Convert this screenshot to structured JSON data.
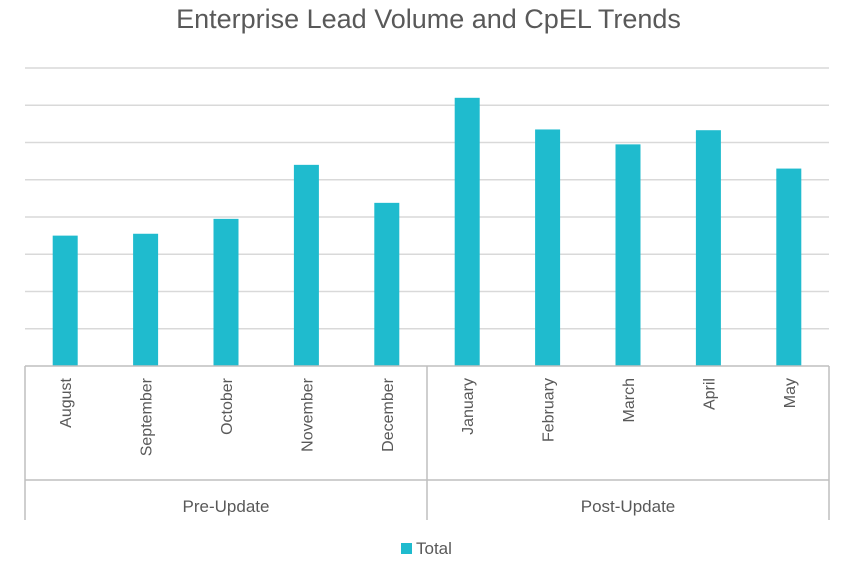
{
  "chart_data": {
    "type": "bar",
    "title": "Enterprise Lead Volume and CpEL Trends",
    "xlabel": "",
    "ylabel": "",
    "y_tick_labels_shown": false,
    "grid": true,
    "legend": {
      "position": "bottom",
      "entries": [
        "Total"
      ]
    },
    "ylim": [
      0,
      8
    ],
    "categories": [
      "August",
      "September",
      "October",
      "November",
      "December",
      "January",
      "February",
      "March",
      "April",
      "May"
    ],
    "groups": [
      {
        "label": "Pre-Update",
        "categories": [
          "August",
          "September",
          "October",
          "November",
          "December"
        ]
      },
      {
        "label": "Post-Update",
        "categories": [
          "January",
          "February",
          "March",
          "April",
          "May"
        ]
      }
    ],
    "series": [
      {
        "name": "Total",
        "color": "#1FBBCE",
        "values": [
          3.5,
          3.55,
          3.95,
          5.4,
          4.38,
          7.2,
          6.35,
          5.95,
          6.33,
          5.3
        ]
      }
    ]
  }
}
